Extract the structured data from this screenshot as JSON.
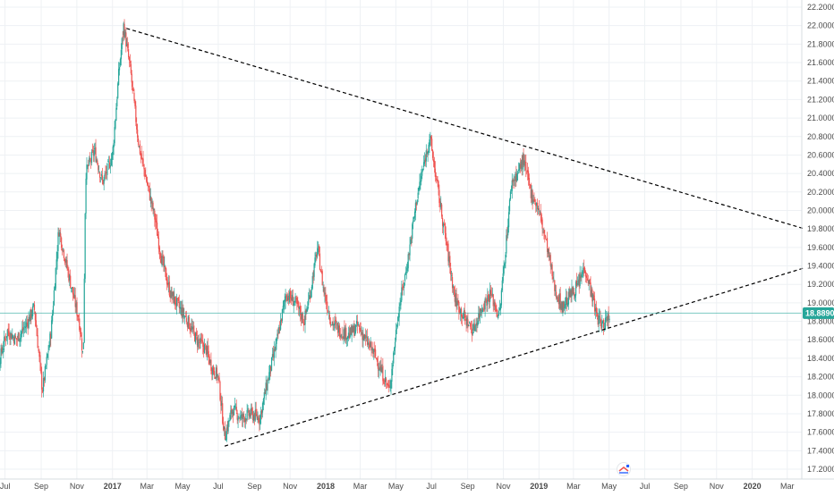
{
  "chart_data": {
    "type": "candlestick",
    "y_ticks": [
      "22.20000",
      "22.00000",
      "21.80000",
      "21.60000",
      "21.40000",
      "21.20000",
      "21.00000",
      "20.80000",
      "20.60000",
      "20.40000",
      "20.20000",
      "20.00000",
      "19.80000",
      "19.60000",
      "19.40000",
      "19.20000",
      "19.00000",
      "18.80000",
      "18.60000",
      "18.40000",
      "18.20000",
      "18.00000",
      "17.80000",
      "17.60000",
      "17.40000",
      "17.20000"
    ],
    "ylim": [
      17.2,
      22.2
    ],
    "x_ticks": [
      "Jul",
      "Sep",
      "Nov",
      "2017",
      "Mar",
      "May",
      "Jul",
      "Sep",
      "Nov",
      "2018",
      "Mar",
      "May",
      "Jul",
      "Sep",
      "Nov",
      "2019",
      "Mar",
      "May",
      "Jul",
      "Sep",
      "Nov",
      "2020",
      "Mar"
    ],
    "x_range": [
      "2016-06-01",
      "2020-04-01"
    ],
    "grid": true,
    "last_price": "18.88900",
    "last_price_value": 18.889,
    "colors": {
      "up": "#26a69a",
      "down": "#ef5350",
      "price_line": "#26a69a",
      "trendline": "#000000",
      "grid": "#eef1f4",
      "axis_text": "#4a4a4a",
      "background": "#ffffff"
    },
    "trendlines": [
      {
        "name": "upper-resistance",
        "style": "dashed",
        "from": {
          "x": "2017-01-25",
          "y": 21.97
        },
        "to": {
          "x": "2020-03-31",
          "y": 19.8
        }
      },
      {
        "name": "lower-support",
        "style": "dashed",
        "from": {
          "x": "2017-07-12",
          "y": 17.45
        },
        "to": {
          "x": "2020-03-31",
          "y": 19.38
        }
      }
    ],
    "price_path": [
      [
        "2016-06-03",
        18.95
      ],
      [
        "2016-06-20",
        18.35
      ],
      [
        "2016-07-05",
        18.7
      ],
      [
        "2016-07-20",
        18.6
      ],
      [
        "2016-08-05",
        18.75
      ],
      [
        "2016-08-20",
        18.95
      ],
      [
        "2016-09-03",
        18.05
      ],
      [
        "2016-09-18",
        18.7
      ],
      [
        "2016-10-01",
        19.8
      ],
      [
        "2016-10-18",
        19.3
      ],
      [
        "2016-11-05",
        18.8
      ],
      [
        "2016-11-12",
        18.4
      ],
      [
        "2016-11-16",
        20.4
      ],
      [
        "2016-12-01",
        20.65
      ],
      [
        "2016-12-15",
        20.3
      ],
      [
        "2017-01-01",
        20.6
      ],
      [
        "2017-01-12",
        21.5
      ],
      [
        "2017-01-20",
        22.0
      ],
      [
        "2017-02-01",
        21.5
      ],
      [
        "2017-02-15",
        20.7
      ],
      [
        "2017-03-01",
        20.3
      ],
      [
        "2017-03-15",
        19.9
      ],
      [
        "2017-03-25",
        19.5
      ],
      [
        "2017-04-10",
        19.1
      ],
      [
        "2017-04-25",
        18.95
      ],
      [
        "2017-05-10",
        18.8
      ],
      [
        "2017-05-25",
        18.6
      ],
      [
        "2017-06-10",
        18.5
      ],
      [
        "2017-06-20",
        18.3
      ],
      [
        "2017-07-01",
        18.2
      ],
      [
        "2017-07-12",
        17.55
      ],
      [
        "2017-07-25",
        17.85
      ],
      [
        "2017-08-10",
        17.75
      ],
      [
        "2017-08-25",
        17.8
      ],
      [
        "2017-09-10",
        17.75
      ],
      [
        "2017-09-25",
        18.2
      ],
      [
        "2017-10-10",
        18.6
      ],
      [
        "2017-10-25",
        19.1
      ],
      [
        "2017-11-10",
        19.0
      ],
      [
        "2017-11-25",
        18.8
      ],
      [
        "2017-12-05",
        19.1
      ],
      [
        "2017-12-18",
        19.6
      ],
      [
        "2017-12-28",
        19.15
      ],
      [
        "2018-01-10",
        18.8
      ],
      [
        "2018-01-25",
        18.7
      ],
      [
        "2018-02-10",
        18.65
      ],
      [
        "2018-02-25",
        18.75
      ],
      [
        "2018-03-10",
        18.6
      ],
      [
        "2018-03-25",
        18.45
      ],
      [
        "2018-04-10",
        18.2
      ],
      [
        "2018-04-20",
        18.05
      ],
      [
        "2018-05-05",
        18.9
      ],
      [
        "2018-05-20",
        19.4
      ],
      [
        "2018-06-05",
        20.1
      ],
      [
        "2018-06-18",
        20.5
      ],
      [
        "2018-06-28",
        20.8
      ],
      [
        "2018-07-10",
        20.3
      ],
      [
        "2018-07-25",
        19.7
      ],
      [
        "2018-08-10",
        19.05
      ],
      [
        "2018-08-25",
        18.85
      ],
      [
        "2018-09-10",
        18.7
      ],
      [
        "2018-09-25",
        18.95
      ],
      [
        "2018-10-10",
        19.1
      ],
      [
        "2018-10-25",
        18.85
      ],
      [
        "2018-11-05",
        19.6
      ],
      [
        "2018-11-15",
        20.3
      ],
      [
        "2018-11-25",
        20.4
      ],
      [
        "2018-12-05",
        20.55
      ],
      [
        "2018-12-18",
        20.2
      ],
      [
        "2019-01-01",
        20.0
      ],
      [
        "2019-01-15",
        19.6
      ],
      [
        "2019-01-28",
        19.15
      ],
      [
        "2019-02-10",
        18.95
      ],
      [
        "2019-02-25",
        19.1
      ],
      [
        "2019-03-10",
        19.2
      ],
      [
        "2019-03-20",
        19.4
      ],
      [
        "2019-04-01",
        19.1
      ],
      [
        "2019-04-10",
        18.85
      ],
      [
        "2019-04-20",
        18.75
      ],
      [
        "2019-04-28",
        18.85
      ],
      [
        "2019-05-02",
        18.89
      ]
    ]
  }
}
